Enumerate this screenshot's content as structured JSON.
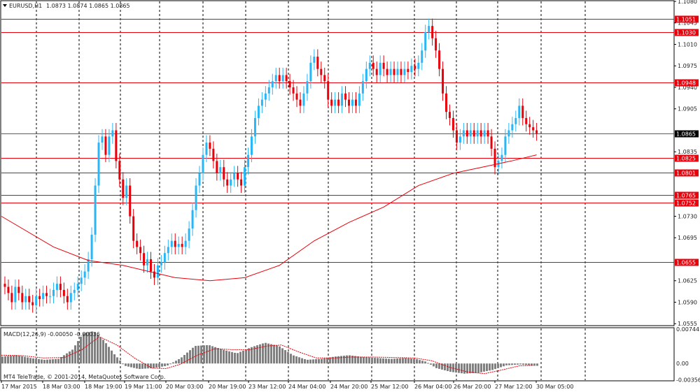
{
  "header": {
    "symbol": "EURUSD,H1",
    "ohlc": "1.0873 1.0874 1.0865 1.0865"
  },
  "macd_header": "MACD(12,26,9) -0.00050 -0.00036",
  "footer": "MT4 TeleTrade, © 2001-2014, MetaQuotes Software Corp.",
  "colors": {
    "bull": "#29b6f6",
    "bear": "#e8000b",
    "level": "#e8000b",
    "current": "#3b5ea8",
    "ma": "#e8000b",
    "histogram": "#808080",
    "signal": "#e8000b"
  },
  "chart_data": [
    {
      "type": "candlestick",
      "title": "EURUSD,H1",
      "ylim": [
        1.0553,
        1.108
      ],
      "y_ticks": [
        "1.1080",
        "1.1045",
        "1.1010",
        "1.0975",
        "1.0940",
        "1.0905",
        "1.0835",
        "1.0730",
        "1.0695",
        "1.0625",
        "1.0590",
        "1.0555"
      ],
      "x_ticks": [
        "17 Mar 2015",
        "18 Mar 03:00",
        "18 Mar 19:00",
        "19 Mar 11:00",
        "20 Mar 03:00",
        "20 Mar 19:00",
        "23 Mar 12:00",
        "24 Mar 04:00",
        "24 Mar 20:00",
        "25 Mar 12:00",
        "26 Mar 04:00",
        "26 Mar 20:00",
        "27 Mar 12:00",
        "30 Mar 05:00"
      ],
      "current_price": "1.0865",
      "levels": [
        {
          "value": 1.1051,
          "label": "1.1051"
        },
        {
          "value": 1.103,
          "label": "1.1030"
        },
        {
          "value": 1.0948,
          "label": "1.0948"
        },
        {
          "value": 1.0825,
          "label": "1.0825"
        },
        {
          "value": 1.0801,
          "label": "1.0801"
        },
        {
          "value": 1.0765,
          "label": "1.0765"
        },
        {
          "value": 1.0752,
          "label": "1.0752"
        },
        {
          "value": 1.0655,
          "label": "1.0655"
        }
      ],
      "price_path": [
        [
          0,
          1.062
        ],
        [
          3,
          1.0615
        ],
        [
          6,
          1.0605
        ],
        [
          9,
          1.059
        ],
        [
          12,
          1.0615
        ],
        [
          15,
          1.0605
        ],
        [
          18,
          1.059
        ],
        [
          21,
          1.06
        ],
        [
          24,
          1.059
        ],
        [
          27,
          1.0585
        ],
        [
          30,
          1.06
        ],
        [
          33,
          1.0595
        ],
        [
          36,
          1.0605
        ],
        [
          39,
          1.06
        ],
        [
          42,
          1.06
        ],
        [
          45,
          1.061
        ],
        [
          48,
          1.062
        ],
        [
          51,
          1.061
        ],
        [
          54,
          1.06
        ],
        [
          57,
          1.059
        ],
        [
          60,
          1.0605
        ],
        [
          63,
          1.061
        ],
        [
          66,
          1.062
        ],
        [
          69,
          1.063
        ],
        [
          72,
          1.064
        ],
        [
          75,
          1.066
        ],
        [
          78,
          1.07
        ],
        [
          81,
          1.078
        ],
        [
          84,
          1.085
        ],
        [
          87,
          1.086
        ],
        [
          90,
          1.083
        ],
        [
          93,
          1.086
        ],
        [
          96,
          1.087
        ],
        [
          99,
          1.082
        ],
        [
          102,
          1.079
        ],
        [
          105,
          1.076
        ],
        [
          108,
          1.078
        ],
        [
          111,
          1.073
        ],
        [
          114,
          1.069
        ],
        [
          117,
          1.068
        ],
        [
          120,
          1.067
        ],
        [
          123,
          1.065
        ],
        [
          126,
          1.066
        ],
        [
          129,
          1.064
        ],
        [
          132,
          1.063
        ],
        [
          135,
          1.065
        ],
        [
          138,
          1.0655
        ],
        [
          141,
          1.067
        ],
        [
          144,
          1.068
        ],
        [
          147,
          1.069
        ],
        [
          150,
          1.068
        ],
        [
          153,
          1.0685
        ],
        [
          156,
          1.068
        ],
        [
          159,
          1.069
        ],
        [
          162,
          1.071
        ],
        [
          165,
          1.074
        ],
        [
          168,
          1.078
        ],
        [
          171,
          1.08
        ],
        [
          174,
          1.083
        ],
        [
          177,
          1.085
        ],
        [
          180,
          1.084
        ],
        [
          183,
          1.082
        ],
        [
          186,
          1.08
        ],
        [
          189,
          1.081
        ],
        [
          192,
          1.079
        ],
        [
          195,
          1.078
        ],
        [
          198,
          1.079
        ],
        [
          201,
          1.08
        ],
        [
          204,
          1.079
        ],
        [
          207,
          1.078
        ],
        [
          210,
          1.081
        ],
        [
          213,
          1.083
        ],
        [
          216,
          1.086
        ],
        [
          219,
          1.089
        ],
        [
          222,
          1.091
        ],
        [
          225,
          1.092
        ],
        [
          228,
          1.093
        ],
        [
          231,
          1.094
        ],
        [
          234,
          1.095
        ],
        [
          237,
          1.096
        ],
        [
          240,
          1.095
        ],
        [
          243,
          1.096
        ],
        [
          246,
          1.095
        ],
        [
          249,
          1.094
        ],
        [
          252,
          1.093
        ],
        [
          255,
          1.092
        ],
        [
          258,
          1.091
        ],
        [
          261,
          1.093
        ],
        [
          264,
          1.095
        ],
        [
          267,
          1.098
        ],
        [
          270,
          1.099
        ],
        [
          273,
          1.097
        ],
        [
          276,
          1.096
        ],
        [
          279,
          1.095
        ],
        [
          282,
          1.092
        ],
        [
          285,
          1.091
        ],
        [
          288,
          1.092
        ],
        [
          291,
          1.091
        ],
        [
          294,
          1.093
        ],
        [
          297,
          1.092
        ],
        [
          300,
          1.091
        ],
        [
          303,
          1.092
        ],
        [
          306,
          1.091
        ],
        [
          309,
          1.093
        ],
        [
          312,
          1.095
        ],
        [
          315,
          1.097
        ],
        [
          318,
          1.098
        ],
        [
          321,
          1.097
        ],
        [
          324,
          1.096
        ],
        [
          327,
          1.098
        ],
        [
          330,
          1.097
        ],
        [
          333,
          1.096
        ],
        [
          336,
          1.097
        ],
        [
          339,
          1.096
        ],
        [
          342,
          1.097
        ],
        [
          345,
          1.096
        ],
        [
          348,
          1.097
        ],
        [
          351,
          1.0965
        ],
        [
          354,
          1.0975
        ],
        [
          357,
          1.097
        ],
        [
          360,
          1.098
        ],
        [
          363,
          1.1
        ],
        [
          366,
          1.103
        ],
        [
          369,
          1.104
        ],
        [
          372,
          1.102
        ],
        [
          375,
          1.1
        ],
        [
          378,
          1.097
        ],
        [
          381,
          1.093
        ],
        [
          384,
          1.09
        ],
        [
          387,
          1.089
        ],
        [
          390,
          1.087
        ],
        [
          393,
          1.085
        ],
        [
          396,
          1.086
        ],
        [
          399,
          1.087
        ],
        [
          402,
          1.086
        ],
        [
          405,
          1.087
        ],
        [
          408,
          1.086
        ],
        [
          411,
          1.087
        ],
        [
          414,
          1.086
        ],
        [
          417,
          1.087
        ],
        [
          420,
          1.086
        ],
        [
          423,
          1.084
        ],
        [
          426,
          1.081
        ],
        [
          429,
          1.082
        ],
        [
          432,
          1.083
        ],
        [
          435,
          1.086
        ],
        [
          438,
          1.087
        ],
        [
          441,
          1.088
        ],
        [
          444,
          1.089
        ],
        [
          447,
          1.091
        ],
        [
          450,
          1.089
        ],
        [
          453,
          1.088
        ],
        [
          456,
          1.0875
        ],
        [
          459,
          1.087
        ],
        [
          462,
          1.0865
        ]
      ],
      "moving_average": [
        [
          0,
          1.073
        ],
        [
          45,
          1.068
        ],
        [
          75,
          1.0658
        ],
        [
          105,
          1.065
        ],
        [
          150,
          1.063
        ],
        [
          180,
          1.0625
        ],
        [
          210,
          1.063
        ],
        [
          240,
          1.065
        ],
        [
          270,
          1.069
        ],
        [
          300,
          1.072
        ],
        [
          330,
          1.0745
        ],
        [
          360,
          1.078
        ],
        [
          390,
          1.08
        ],
        [
          420,
          1.0812
        ],
        [
          440,
          1.082
        ],
        [
          462,
          1.083
        ]
      ]
    },
    {
      "type": "bar",
      "title": "MACD(12,26,9) -0.00050 -0.00036",
      "ylim": [
        -0.0036,
        0.0076
      ],
      "y_ticks": [
        "0.00744",
        "0.00",
        "-0.00356"
      ],
      "macd": [
        [
          0,
          0.0015
        ],
        [
          20,
          0.0018
        ],
        [
          40,
          0.0012
        ],
        [
          60,
          0.0008
        ],
        [
          80,
          0.001
        ],
        [
          100,
          0.003
        ],
        [
          115,
          0.0065
        ],
        [
          130,
          0.007
        ],
        [
          145,
          0.005
        ],
        [
          160,
          0.002
        ],
        [
          175,
          -0.0005
        ],
        [
          195,
          -0.0012
        ],
        [
          215,
          -0.001
        ],
        [
          235,
          -0.0005
        ],
        [
          255,
          0.0012
        ],
        [
          275,
          0.0038
        ],
        [
          295,
          0.004
        ],
        [
          315,
          0.003
        ],
        [
          335,
          0.0022
        ],
        [
          355,
          0.0035
        ],
        [
          375,
          0.0045
        ],
        [
          395,
          0.0038
        ],
        [
          415,
          0.0018
        ],
        [
          435,
          0.0008
        ],
        [
          455,
          0.001
        ],
        [
          475,
          0.0015
        ],
        [
          495,
          0.0018
        ],
        [
          515,
          0.0014
        ],
        [
          535,
          0.0012
        ],
        [
          555,
          0.001
        ],
        [
          575,
          0.0012
        ],
        [
          590,
          0.001
        ],
        [
          605,
          0.0004
        ],
        [
          620,
          -0.001
        ],
        [
          640,
          -0.0018
        ],
        [
          660,
          -0.0022
        ],
        [
          680,
          -0.002
        ],
        [
          700,
          -0.0014
        ],
        [
          720,
          -0.0004
        ],
        [
          740,
          -0.0002
        ],
        [
          760,
          -0.0005
        ]
      ],
      "signal": [
        [
          0,
          0.0018
        ],
        [
          30,
          0.0017
        ],
        [
          60,
          0.0012
        ],
        [
          90,
          0.0013
        ],
        [
          115,
          0.003
        ],
        [
          140,
          0.0058
        ],
        [
          165,
          0.004
        ],
        [
          190,
          0.0012
        ],
        [
          215,
          -0.001
        ],
        [
          235,
          -0.0011
        ],
        [
          255,
          -0.0002
        ],
        [
          280,
          0.0018
        ],
        [
          305,
          0.0032
        ],
        [
          330,
          0.003
        ],
        [
          355,
          0.003
        ],
        [
          380,
          0.0038
        ],
        [
          400,
          0.004
        ],
        [
          425,
          0.0025
        ],
        [
          450,
          0.0012
        ],
        [
          475,
          0.0012
        ],
        [
          500,
          0.0014
        ],
        [
          530,
          0.0014
        ],
        [
          560,
          0.0013
        ],
        [
          590,
          0.0012
        ],
        [
          615,
          0.0006
        ],
        [
          640,
          -0.0008
        ],
        [
          665,
          -0.0018
        ],
        [
          690,
          -0.0022
        ],
        [
          715,
          -0.0014
        ],
        [
          740,
          -0.0005
        ],
        [
          760,
          -0.0004
        ]
      ]
    }
  ]
}
